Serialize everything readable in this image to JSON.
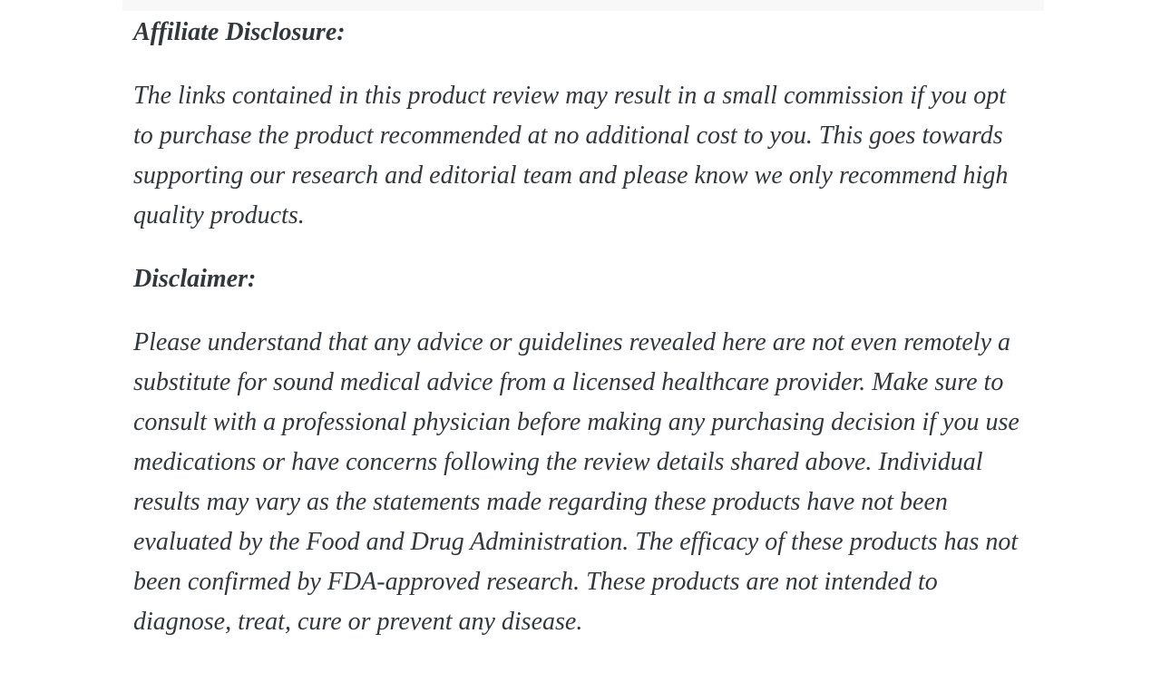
{
  "page": {
    "background_color": "#ffffff",
    "text_color": "#32373c",
    "top_strip_color": "#f8f8f8"
  },
  "article": {
    "sections": [
      {
        "heading": "Affiliate Disclosure:",
        "paragraphs": [
          "The links contained in this product review may result in a small commission if you opt to purchase the product recommended at no additional cost to you. This goes towards supporting our research and editorial team and please know we only recommend high quality products."
        ]
      },
      {
        "heading": "Disclaimer:",
        "paragraphs": [
          "Please understand that any advice or guidelines revealed here are not even remotely a substitute for sound medical advice from a licensed healthcare provider. Make sure to consult with a professional physician before making any purchasing decision if you use medications or have concerns following the review details shared above. Individual results may vary as the statements made regarding these products have not been evaluated by the Food and Drug Administration. The efficacy of these products has not been confirmed by FDA-approved research. These products are not intended to diagnose, treat, cure or prevent any disease."
        ]
      }
    ]
  }
}
